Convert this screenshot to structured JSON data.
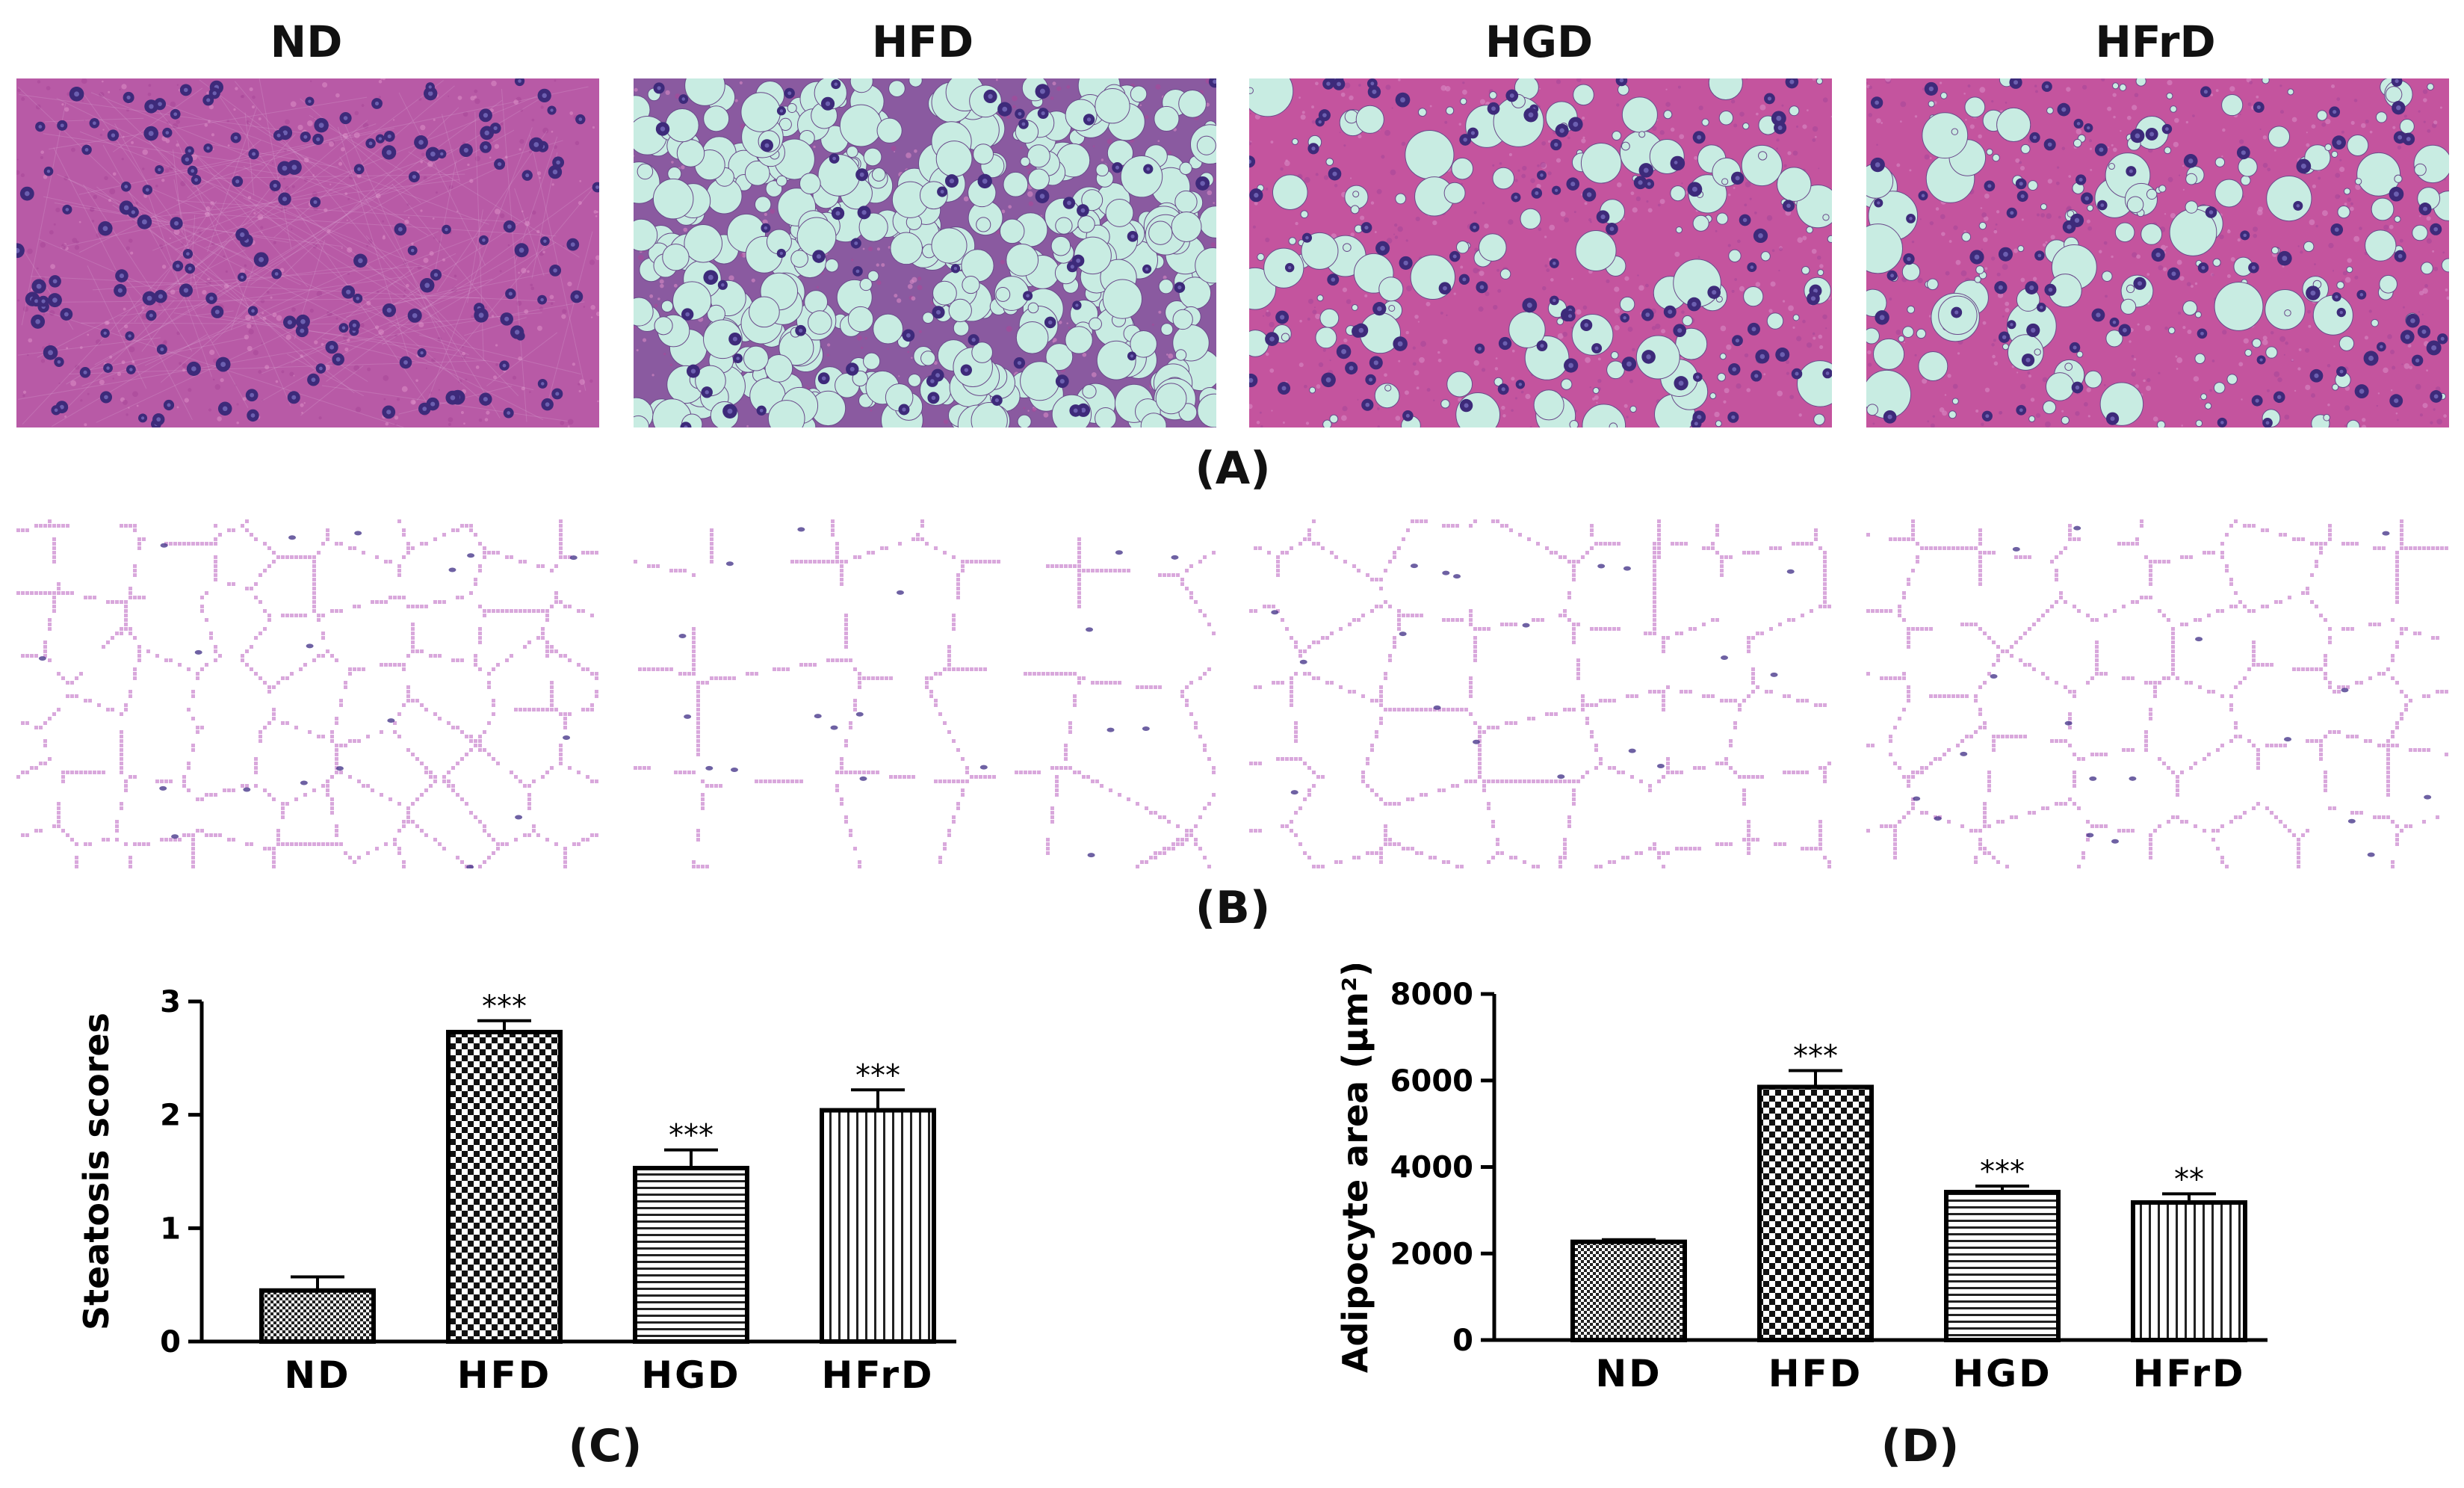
{
  "groups": [
    "ND",
    "HFD",
    "HGD",
    "HFrD"
  ],
  "panels": {
    "a": "(A)",
    "b": "(B)",
    "c": "(C)",
    "d": "(D)"
  },
  "histology": {
    "liver_tissue_colors": {
      "background": "#c45ea8",
      "nucleus": "#3d2a7a",
      "lipid": "#c8ece2"
    },
    "adipose_tissue_colors": {
      "background": "#ffffff",
      "membrane": "#d9a8dc",
      "nucleus": "#4a3a8c"
    }
  },
  "chart_data": [
    {
      "type": "bar",
      "panel": "(C)",
      "categories": [
        "ND",
        "HFD",
        "HGD",
        "HFrD"
      ],
      "values": [
        0.45,
        2.73,
        1.53,
        2.04
      ],
      "errors": [
        0.12,
        0.1,
        0.16,
        0.18
      ],
      "significance": [
        "",
        "***",
        "***",
        "***"
      ],
      "ylabel": "Steatosis scores",
      "ylim": [
        0,
        3
      ],
      "yticks": [
        "0",
        "1",
        "2",
        "3"
      ],
      "patterns": [
        "fine-checker",
        "checker",
        "horizontal-lines",
        "vertical-lines"
      ]
    },
    {
      "type": "bar",
      "panel": "(D)",
      "categories": [
        "ND",
        "HFD",
        "HGD",
        "HFrD"
      ],
      "values": [
        2270,
        5850,
        3420,
        3180
      ],
      "errors": [
        50,
        380,
        140,
        200
      ],
      "significance": [
        "",
        "***",
        "***",
        "**"
      ],
      "ylabel": "Adipocyte area (μm²)",
      "ylim": [
        0,
        8000
      ],
      "yticks": [
        "0",
        "2000",
        "4000",
        "6000",
        "8000"
      ],
      "patterns": [
        "fine-checker",
        "checker",
        "horizontal-lines",
        "vertical-lines"
      ]
    }
  ]
}
